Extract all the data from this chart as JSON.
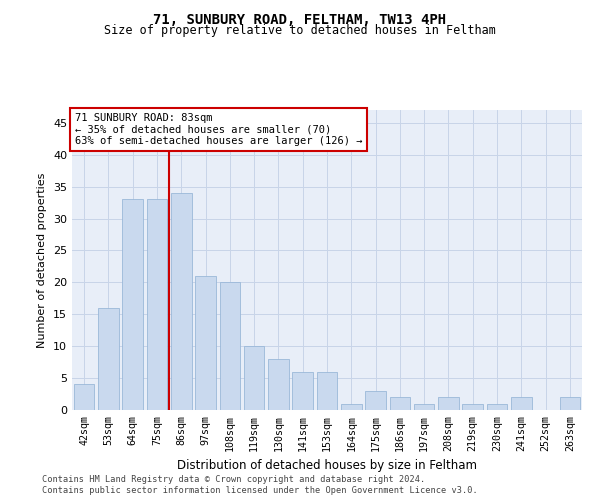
{
  "title1": "71, SUNBURY ROAD, FELTHAM, TW13 4PH",
  "title2": "Size of property relative to detached houses in Feltham",
  "xlabel": "Distribution of detached houses by size in Feltham",
  "ylabel": "Number of detached properties",
  "categories": [
    "42sqm",
    "53sqm",
    "64sqm",
    "75sqm",
    "86sqm",
    "97sqm",
    "108sqm",
    "119sqm",
    "130sqm",
    "141sqm",
    "153sqm",
    "164sqm",
    "175sqm",
    "186sqm",
    "197sqm",
    "208sqm",
    "219sqm",
    "230sqm",
    "241sqm",
    "252sqm",
    "263sqm"
  ],
  "values": [
    4,
    16,
    33,
    33,
    34,
    21,
    20,
    10,
    8,
    6,
    6,
    1,
    3,
    2,
    1,
    2,
    1,
    1,
    2,
    0,
    2
  ],
  "bar_color": "#c9d9ee",
  "bar_edge_color": "#9ab8d8",
  "vline_x": 3.5,
  "vline_color": "#cc0000",
  "annotation_line1": "71 SUNBURY ROAD: 83sqm",
  "annotation_line2": "← 35% of detached houses are smaller (70)",
  "annotation_line3": "63% of semi-detached houses are larger (126) →",
  "annotation_box_edge": "#cc0000",
  "ylim": [
    0,
    47
  ],
  "yticks": [
    0,
    5,
    10,
    15,
    20,
    25,
    30,
    35,
    40,
    45
  ],
  "grid_color": "#c8d4e8",
  "footer1": "Contains HM Land Registry data © Crown copyright and database right 2024.",
  "footer2": "Contains public sector information licensed under the Open Government Licence v3.0.",
  "fig_bg_color": "#ffffff",
  "plot_bg_color": "#e8eef8"
}
